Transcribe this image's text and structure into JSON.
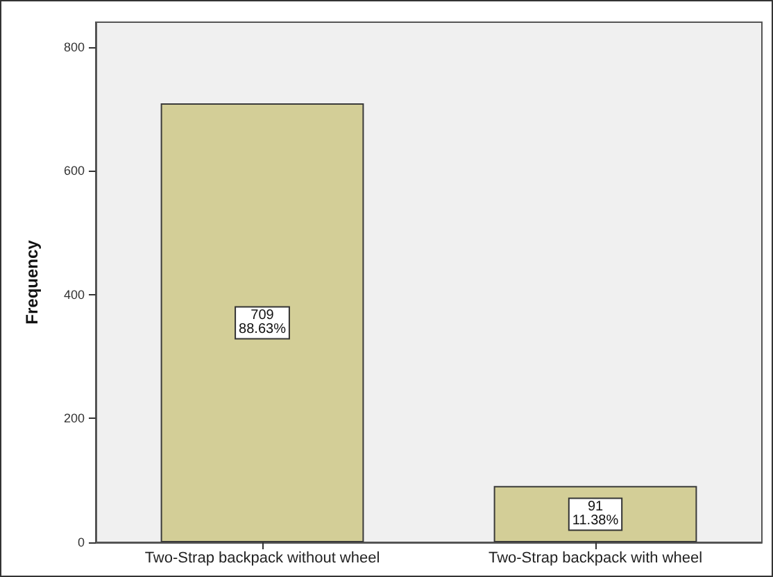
{
  "chart_data": {
    "type": "bar",
    "ylabel": "Frequency",
    "categories": [
      "Two-Strap backpack without wheel",
      "Two-Strap backpack with wheel"
    ],
    "values": [
      709,
      91
    ],
    "value_labels": [
      "709\n88.63%",
      "91\n11.38%"
    ],
    "color": "#d3ce97",
    "ylim": [
      0,
      840
    ],
    "yticks": [
      0,
      200,
      400,
      600,
      800
    ],
    "grid": false
  }
}
